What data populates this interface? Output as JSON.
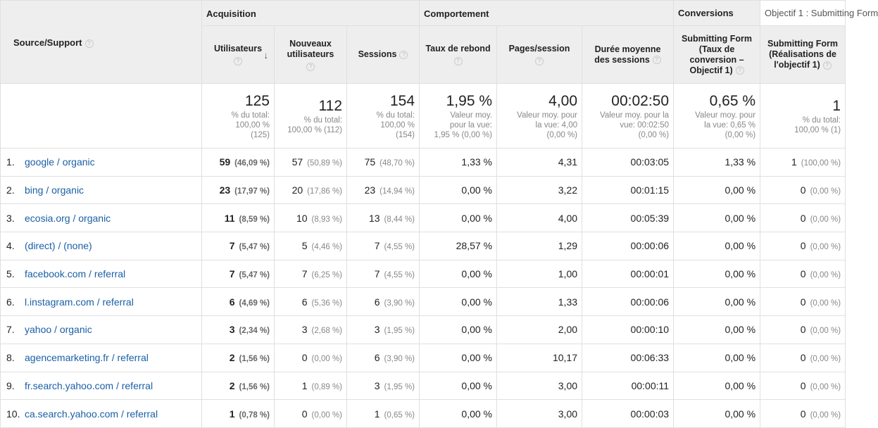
{
  "groups": {
    "acquisition": "Acquisition",
    "behavior": "Comportement",
    "conversions": "Conversions",
    "goal_select": "Objectif 1 : Submitting Form"
  },
  "columns": {
    "source": "Source/Support",
    "users": "Utilisateurs",
    "new_users_1": "Nouveaux",
    "new_users_2": "utilisateurs",
    "sessions": "Sessions",
    "bounce": "Taux de rebond",
    "pages": "Pages/session",
    "duration_1": "Durée moyenne",
    "duration_2": "des sessions",
    "conv_rate_1": "Submitting Form",
    "conv_rate_2": "(Taux de",
    "conv_rate_3": "conversion –",
    "conv_rate_4": "Objectif 1)",
    "completions_1": "Submitting Form",
    "completions_2": "(Réalisations de",
    "completions_3": "l'objectif 1)"
  },
  "totals": {
    "users": {
      "value": "125",
      "l1": "% du total:",
      "l2": "100,00 %",
      "l3": "(125)"
    },
    "new_users": {
      "value": "112",
      "l1": "% du total:",
      "l2": "100,00 % (112)"
    },
    "sessions": {
      "value": "154",
      "l1": "% du total:",
      "l2": "100,00 %",
      "l3": "(154)"
    },
    "bounce": {
      "value": "1,95 %",
      "l1": "Valeur moy.",
      "l2": "pour la vue:",
      "l3": "1,95 % (0,00 %)"
    },
    "pages": {
      "value": "4,00",
      "l1": "Valeur moy. pour",
      "l2": "la vue: 4,00",
      "l3": "(0,00 %)"
    },
    "duration": {
      "value": "00:02:50",
      "l1": "Valeur moy. pour la",
      "l2": "vue: 00:02:50",
      "l3": "(0,00 %)"
    },
    "conv_rate": {
      "value": "0,65 %",
      "l1": "Valeur moy. pour",
      "l2": "la vue: 0,65 %",
      "l3": "(0,00 %)"
    },
    "completions": {
      "value": "1",
      "l1": "% du total:",
      "l2": "100,00 % (1)"
    }
  },
  "rows": [
    {
      "rank": "1.",
      "source": "google / organic",
      "users": "59",
      "users_pct": "(46,09 %)",
      "new_users": "57",
      "new_users_pct": "(50,89 %)",
      "sessions": "75",
      "sessions_pct": "(48,70 %)",
      "bounce": "1,33 %",
      "pages": "4,31",
      "duration": "00:03:05",
      "conv_rate": "1,33 %",
      "completions": "1",
      "completions_pct": "(100,00 %)"
    },
    {
      "rank": "2.",
      "source": "bing / organic",
      "users": "23",
      "users_pct": "(17,97 %)",
      "new_users": "20",
      "new_users_pct": "(17,86 %)",
      "sessions": "23",
      "sessions_pct": "(14,94 %)",
      "bounce": "0,00 %",
      "pages": "3,22",
      "duration": "00:01:15",
      "conv_rate": "0,00 %",
      "completions": "0",
      "completions_pct": "(0,00 %)"
    },
    {
      "rank": "3.",
      "source": "ecosia.org / organic",
      "users": "11",
      "users_pct": "(8,59 %)",
      "new_users": "10",
      "new_users_pct": "(8,93 %)",
      "sessions": "13",
      "sessions_pct": "(8,44 %)",
      "bounce": "0,00 %",
      "pages": "4,00",
      "duration": "00:05:39",
      "conv_rate": "0,00 %",
      "completions": "0",
      "completions_pct": "(0,00 %)"
    },
    {
      "rank": "4.",
      "source": "(direct) / (none)",
      "users": "7",
      "users_pct": "(5,47 %)",
      "new_users": "5",
      "new_users_pct": "(4,46 %)",
      "sessions": "7",
      "sessions_pct": "(4,55 %)",
      "bounce": "28,57 %",
      "pages": "1,29",
      "duration": "00:00:06",
      "conv_rate": "0,00 %",
      "completions": "0",
      "completions_pct": "(0,00 %)"
    },
    {
      "rank": "5.",
      "source": "facebook.com / referral",
      "users": "7",
      "users_pct": "(5,47 %)",
      "new_users": "7",
      "new_users_pct": "(6,25 %)",
      "sessions": "7",
      "sessions_pct": "(4,55 %)",
      "bounce": "0,00 %",
      "pages": "1,00",
      "duration": "00:00:01",
      "conv_rate": "0,00 %",
      "completions": "0",
      "completions_pct": "(0,00 %)"
    },
    {
      "rank": "6.",
      "source": "l.instagram.com / referral",
      "users": "6",
      "users_pct": "(4,69 %)",
      "new_users": "6",
      "new_users_pct": "(5,36 %)",
      "sessions": "6",
      "sessions_pct": "(3,90 %)",
      "bounce": "0,00 %",
      "pages": "1,33",
      "duration": "00:00:06",
      "conv_rate": "0,00 %",
      "completions": "0",
      "completions_pct": "(0,00 %)"
    },
    {
      "rank": "7.",
      "source": "yahoo / organic",
      "users": "3",
      "users_pct": "(2,34 %)",
      "new_users": "3",
      "new_users_pct": "(2,68 %)",
      "sessions": "3",
      "sessions_pct": "(1,95 %)",
      "bounce": "0,00 %",
      "pages": "2,00",
      "duration": "00:00:10",
      "conv_rate": "0,00 %",
      "completions": "0",
      "completions_pct": "(0,00 %)"
    },
    {
      "rank": "8.",
      "source": "agencemarketing.fr / referral",
      "users": "2",
      "users_pct": "(1,56 %)",
      "new_users": "0",
      "new_users_pct": "(0,00 %)",
      "sessions": "6",
      "sessions_pct": "(3,90 %)",
      "bounce": "0,00 %",
      "pages": "10,17",
      "duration": "00:06:33",
      "conv_rate": "0,00 %",
      "completions": "0",
      "completions_pct": "(0,00 %)"
    },
    {
      "rank": "9.",
      "source": "fr.search.yahoo.com / referral",
      "users": "2",
      "users_pct": "(1,56 %)",
      "new_users": "1",
      "new_users_pct": "(0,89 %)",
      "sessions": "3",
      "sessions_pct": "(1,95 %)",
      "bounce": "0,00 %",
      "pages": "3,00",
      "duration": "00:00:11",
      "conv_rate": "0,00 %",
      "completions": "0",
      "completions_pct": "(0,00 %)"
    },
    {
      "rank": "10.",
      "source": "ca.search.yahoo.com / referral",
      "users": "1",
      "users_pct": "(0,78 %)",
      "new_users": "0",
      "new_users_pct": "(0,00 %)",
      "sessions": "1",
      "sessions_pct": "(0,65 %)",
      "bounce": "0,00 %",
      "pages": "3,00",
      "duration": "00:00:03",
      "conv_rate": "0,00 %",
      "completions": "0",
      "completions_pct": "(0,00 %)"
    }
  ],
  "icons": {
    "help": "question-mark-circle",
    "sort": "arrow-down"
  }
}
